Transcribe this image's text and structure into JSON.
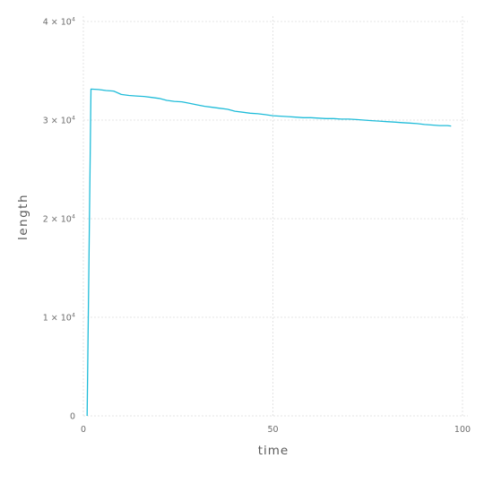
{
  "chart_data": {
    "type": "line",
    "title": "",
    "xlabel": "time",
    "ylabel": "length",
    "xlim": [
      0,
      100
    ],
    "ylim": [
      0,
      40000
    ],
    "x_ticks": [
      0,
      50,
      100
    ],
    "x_tick_labels": [
      "0",
      "50",
      "100"
    ],
    "y_ticks": [
      0,
      10000,
      20000,
      30000,
      40000
    ],
    "y_tick_labels": [
      {
        "base": "0",
        "exp": ""
      },
      {
        "base": "1 × 10",
        "exp": "4"
      },
      {
        "base": "2 × 10",
        "exp": "4"
      },
      {
        "base": "3 × 10",
        "exp": "4"
      },
      {
        "base": "4 × 10",
        "exp": "4"
      }
    ],
    "grid": true,
    "legend": "none",
    "series": [
      {
        "color": "#1fbcd9",
        "x": [
          1,
          2,
          4,
          6,
          8,
          10,
          12,
          14,
          16,
          18,
          20,
          22,
          24,
          26,
          28,
          30,
          32,
          34,
          36,
          38,
          40,
          42,
          44,
          46,
          48,
          50,
          52,
          54,
          56,
          58,
          60,
          62,
          64,
          66,
          68,
          70,
          72,
          74,
          76,
          78,
          80,
          82,
          84,
          86,
          88,
          90,
          92,
          94,
          96,
          97
        ],
        "y": [
          0,
          33150,
          33100,
          33000,
          32950,
          32600,
          32500,
          32450,
          32400,
          32300,
          32200,
          32000,
          31900,
          31850,
          31700,
          31550,
          31400,
          31300,
          31200,
          31100,
          30900,
          30800,
          30700,
          30650,
          30550,
          30450,
          30400,
          30350,
          30300,
          30250,
          30250,
          30200,
          30150,
          30150,
          30100,
          30100,
          30050,
          30000,
          29950,
          29900,
          29850,
          29800,
          29750,
          29700,
          29650,
          29550,
          29500,
          29450,
          29450,
          29400
        ]
      }
    ]
  }
}
